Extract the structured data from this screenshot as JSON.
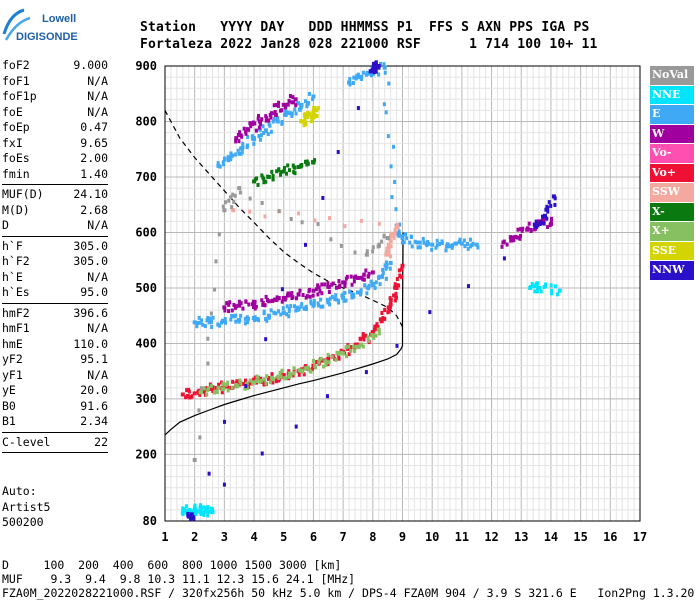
{
  "logo": {
    "line1": "Lowell",
    "line2": "DIGISONDE"
  },
  "header": {
    "line1": "Station   YYYY DAY   DDD HHMMSS P1  FFS S AXN PPS IGA PS",
    "line2": "Fortaleza 2022 Jan28 028 221000 RSF      1 714 100 10+ 11"
  },
  "params": [
    {
      "name": "foF2",
      "value": "9.000"
    },
    {
      "name": "foF1",
      "value": "N/A"
    },
    {
      "name": "foF1p",
      "value": "N/A"
    },
    {
      "name": "foE",
      "value": "N/A"
    },
    {
      "name": "foEp",
      "value": "0.47"
    },
    {
      "name": "fxI",
      "value": "9.65"
    },
    {
      "name": "foEs",
      "value": "2.00"
    },
    {
      "name": "fmin",
      "value": "1.40"
    },
    {
      "sep": true
    },
    {
      "name": "MUF(D)",
      "value": "24.10"
    },
    {
      "name": "M(D)",
      "value": "2.68"
    },
    {
      "name": "D",
      "value": "N/A"
    },
    {
      "sep": true
    },
    {
      "name": "h`F",
      "value": "305.0"
    },
    {
      "name": "h`F2",
      "value": "305.0"
    },
    {
      "name": "h`E",
      "value": "N/A"
    },
    {
      "name": "h`Es",
      "value": "95.0"
    },
    {
      "sep": true
    },
    {
      "name": "hmF2",
      "value": "396.6"
    },
    {
      "name": "hmF1",
      "value": "N/A"
    },
    {
      "name": "hmE",
      "value": "110.0"
    },
    {
      "name": "yF2",
      "value": "95.1"
    },
    {
      "name": "yF1",
      "value": "N/A"
    },
    {
      "name": "yE",
      "value": "20.0"
    },
    {
      "name": "B0",
      "value": "91.6"
    },
    {
      "name": "B1",
      "value": "2.34"
    },
    {
      "sep": true
    },
    {
      "name": "C-level",
      "value": "22"
    },
    {
      "sep": true
    }
  ],
  "auto": {
    "line1": "Auto:",
    "line2": "Artist5",
    "line3": "500200"
  },
  "legend": [
    {
      "label": "NoVal",
      "bg": "#999999",
      "fg": "#ffffff"
    },
    {
      "label": "NNE",
      "bg": "#00e5ff",
      "fg": "#ffffff"
    },
    {
      "label": "E",
      "bg": "#3fa9f5",
      "fg": "#ffffff"
    },
    {
      "label": "W",
      "bg": "#a0009e",
      "fg": "#ffffff"
    },
    {
      "label": "Vo-",
      "bg": "#ff4fb0",
      "fg": "#ffffff"
    },
    {
      "label": "Vo+",
      "bg": "#ee1133",
      "fg": "#ffffff"
    },
    {
      "label": "SSW",
      "bg": "#f4a9a0",
      "fg": "#ffffff"
    },
    {
      "label": "X-",
      "bg": "#0a7a10",
      "fg": "#ffffff"
    },
    {
      "label": "X+",
      "bg": "#86c060",
      "fg": "#ffffff"
    },
    {
      "label": "SSE",
      "bg": "#d4d400",
      "fg": "#ffffff"
    },
    {
      "label": "NNW",
      "bg": "#2a10c8",
      "fg": "#ffffff"
    }
  ],
  "footer": {
    "line1": "D     100  200  400  600  800 1000 1500 3000 [km]",
    "line2": "MUF    9.3  9.4  9.8 10.3 11.1 12.3 15.6 24.1 [MHz]",
    "line3": "FZA0M_2022028221000.RSF / 320fx256h 50 kHz 5.0 km / DPS-4 FZA0M 904 / 3.9 S 321.6 E   Ion2Png 1.3.20"
  },
  "chart_data": {
    "type": "scatter",
    "title": "",
    "xlabel": "",
    "ylabel": "",
    "xlim": [
      1,
      17
    ],
    "ylim": [
      80,
      900
    ],
    "xticks": [
      1,
      2,
      3,
      4,
      5,
      6,
      7,
      8,
      9,
      10,
      11,
      12,
      13,
      14,
      15,
      16,
      17
    ],
    "yticks": [
      80,
      200,
      300,
      400,
      500,
      600,
      700,
      800,
      900
    ],
    "grid": true,
    "legend_position": "right",
    "dashed_curve": {
      "x": [
        1.0,
        1.5,
        2.0,
        2.5,
        3.0,
        3.5,
        4.0,
        4.5,
        5.0,
        5.5,
        6.0,
        6.5,
        7.0,
        7.5,
        8.0,
        8.5,
        8.8,
        9.0
      ],
      "y": [
        820,
        770,
        735,
        705,
        675,
        645,
        618,
        590,
        565,
        545,
        527,
        512,
        500,
        490,
        478,
        465,
        450,
        430
      ]
    },
    "profile_curve": {
      "x": [
        1.0,
        1.2,
        1.5,
        2.0,
        2.5,
        3.0,
        3.5,
        4.0,
        4.5,
        5.0,
        5.5,
        6.0,
        6.5,
        7.0,
        7.5,
        8.0,
        8.5,
        8.8,
        8.95,
        9.0,
        9.0,
        9.02
      ],
      "y": [
        235,
        245,
        258,
        270,
        280,
        290,
        298,
        306,
        313,
        320,
        327,
        333,
        340,
        347,
        355,
        363,
        372,
        380,
        390,
        396,
        450,
        600
      ]
    },
    "series": [
      {
        "name": "E",
        "color": "#3fa9f5",
        "x": [
          2.0,
          2.5,
          3.0,
          3.5,
          4.0,
          4.5,
          5.0,
          5.5,
          6.0,
          6.5,
          7.0,
          7.5,
          8.0,
          8.3,
          8.6
        ],
        "y": [
          438,
          438,
          440,
          442,
          446,
          450,
          456,
          462,
          468,
          474,
          482,
          492,
          505,
          520,
          545
        ]
      },
      {
        "name": "E",
        "color": "#3fa9f5",
        "x": [
          2.8,
          3.2,
          3.6,
          4.0,
          4.4,
          4.8,
          5.2,
          5.6,
          6.0
        ],
        "y": [
          720,
          735,
          752,
          768,
          784,
          800,
          815,
          830,
          845
        ]
      },
      {
        "name": "E",
        "color": "#3fa9f5",
        "x": [
          7.2,
          7.6,
          8.0,
          8.4,
          8.8,
          9.0,
          9.5,
          10.0,
          10.5,
          11.0,
          11.5
        ],
        "y": [
          870,
          880,
          890,
          897,
          610,
          590,
          582,
          578,
          575,
          580,
          578
        ]
      },
      {
        "name": "W",
        "color": "#a0009e",
        "x": [
          3.0,
          3.5,
          4.0,
          4.5,
          5.0,
          5.5,
          6.0,
          6.5,
          7.0,
          7.5,
          8.0
        ],
        "y": [
          465,
          468,
          472,
          476,
          482,
          488,
          495,
          502,
          510,
          518,
          528
        ]
      },
      {
        "name": "W",
        "color": "#a0009e",
        "x": [
          3.4,
          3.8,
          4.2,
          4.6,
          5.0,
          5.4
        ],
        "y": [
          770,
          785,
          800,
          815,
          830,
          840
        ]
      },
      {
        "name": "W",
        "color": "#a0009e",
        "x": [
          12.4,
          12.8,
          13.2,
          13.6,
          14.0
        ],
        "y": [
          582,
          592,
          605,
          620,
          615
        ]
      },
      {
        "name": "Vo+",
        "color": "#ee1133",
        "x": [
          1.6,
          2.0,
          2.5,
          3.0,
          3.5,
          4.0,
          4.5,
          5.0,
          5.5,
          6.0,
          6.5,
          7.0,
          7.5,
          8.0,
          8.3,
          8.6,
          8.8,
          9.0
        ],
        "y": [
          308,
          310,
          318,
          322,
          326,
          330,
          336,
          343,
          350,
          360,
          372,
          385,
          398,
          418,
          440,
          470,
          500,
          540
        ]
      },
      {
        "name": "X+",
        "color": "#86c060",
        "x": [
          2.2,
          2.8,
          3.4,
          4.0,
          4.6,
          5.2,
          5.8,
          6.4,
          7.0,
          7.6,
          8.2
        ],
        "y": [
          312,
          320,
          325,
          330,
          338,
          345,
          356,
          368,
          382,
          398,
          425
        ]
      },
      {
        "name": "X-",
        "color": "#0a7a10",
        "x": [
          4.0,
          4.5,
          5.0,
          5.5,
          6.0
        ],
        "y": [
          692,
          700,
          710,
          718,
          726
        ]
      },
      {
        "name": "NNE",
        "color": "#00e5ff",
        "x": [
          1.6,
          1.8,
          2.0,
          2.2,
          2.4,
          2.6
        ],
        "y": [
          95,
          98,
          100,
          102,
          97,
          96
        ]
      },
      {
        "name": "NNE",
        "color": "#00e5ff",
        "x": [
          13.3,
          13.6,
          14.3
        ],
        "y": [
          500,
          500,
          495
        ]
      },
      {
        "name": "SSE",
        "color": "#d4d400",
        "x": [
          5.6,
          5.8,
          6.0,
          6.1
        ],
        "y": [
          800,
          808,
          815,
          820
        ]
      },
      {
        "name": "SSW",
        "color": "#f4a9a0",
        "x": [
          8.5,
          8.6,
          8.7,
          8.8,
          3.3
        ],
        "y": [
          560,
          575,
          595,
          610,
          640
        ]
      },
      {
        "name": "NNW",
        "color": "#2a10c8",
        "x": [
          8.0,
          8.1,
          8.2,
          1.8,
          1.9,
          13.5,
          13.8,
          14.1
        ],
        "y": [
          893,
          897,
          900,
          88,
          92,
          610,
          630,
          665
        ]
      },
      {
        "name": "NoVal",
        "color": "#999999",
        "x": [
          2.0,
          3.0,
          3.5,
          7.8,
          8.5
        ],
        "y": [
          190,
          640,
          680,
          560,
          590
        ]
      }
    ]
  }
}
